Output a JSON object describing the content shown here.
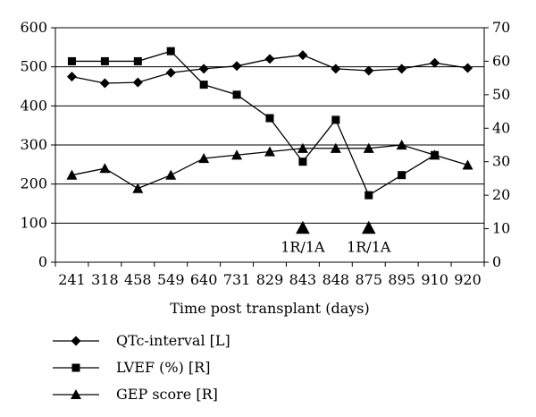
{
  "chart_data": {
    "type": "line",
    "categories": [
      "241",
      "318",
      "458",
      "549",
      "640",
      "731",
      "829",
      "843",
      "848",
      "875",
      "895",
      "910",
      "920"
    ],
    "xlabel": "Time post transplant (days)",
    "y_left": {
      "min": 0,
      "max": 600,
      "ticks": [
        0,
        100,
        200,
        300,
        400,
        500,
        600
      ]
    },
    "y_right": {
      "min": 0,
      "max": 70,
      "ticks": [
        0,
        10,
        20,
        30,
        40,
        50,
        60,
        70
      ]
    },
    "grid": "horizontal",
    "legend_position": "bottom-left",
    "series": [
      {
        "name": "QTc-interval [L]",
        "axis": "left",
        "marker": "diamond",
        "values": [
          475,
          458,
          460,
          485,
          495,
          502,
          520,
          530,
          495,
          490,
          495,
          510,
          497
        ]
      },
      {
        "name": "LVEF (%) [R]",
        "axis": "right",
        "marker": "square",
        "values": [
          60,
          60,
          60,
          63,
          53,
          50,
          43,
          30,
          42.5,
          20,
          26,
          32,
          null
        ]
      },
      {
        "name": "GEP score [R]",
        "axis": "right",
        "marker": "triangle",
        "values": [
          26,
          28,
          22,
          26,
          31,
          32,
          33,
          34,
          34,
          34,
          35,
          32,
          29
        ]
      }
    ],
    "annotations": [
      {
        "category": "843",
        "text": "1R/1A",
        "value": 10,
        "axis": "right",
        "marker": "triangle"
      },
      {
        "category": "875",
        "text": "1R/1A",
        "value": 10,
        "axis": "right",
        "marker": "triangle"
      }
    ]
  }
}
